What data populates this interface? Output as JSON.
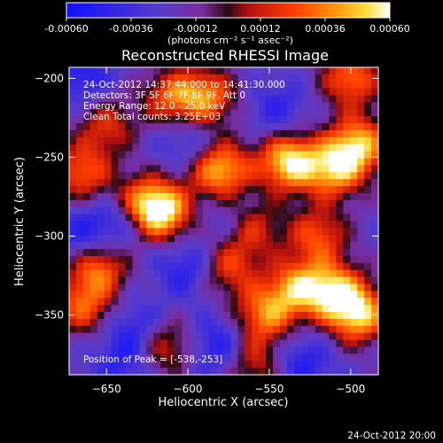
{
  "colors": {
    "background": "#000000",
    "foreground": "#ffffff",
    "colormap": [
      "#1010ff",
      "#5a3cc8",
      "#7a2a9a",
      "#2a0a12",
      "#b01010",
      "#ff3c00",
      "#ff9a10",
      "#ffe040",
      "#ffffff"
    ]
  },
  "colorbar": {
    "ticks": [
      "-0.00060",
      "-0.00036",
      "-0.00012",
      "0.00012",
      "0.00036",
      "0.00060"
    ],
    "units": "(photons cm⁻² s⁻¹ asec⁻²)"
  },
  "title": "Reconstructed RHESSI Image",
  "info": {
    "line1": "24-Oct-2012 14:37:44.000 to 14:41:30.000",
    "line2": "Detectors: 3F 5F 6F 7F 8F 9F, Att 0",
    "line3": "Energy Range: 12.0 - 25.0 keV",
    "line4": "Clean     Total counts: 3.25E+03"
  },
  "peak": "Position of Peak = [-538,-253]",
  "footer": "24-Oct-2012 20:00",
  "chart_data": {
    "type": "heatmap",
    "title": "Reconstructed RHESSI Image",
    "xlabel": "Heliocentric X (arcsec)",
    "ylabel": "Heliocentric Y (arcsec)",
    "xlim": [
      -673,
      -483
    ],
    "ylim": [
      -388,
      -193
    ],
    "xticks": [
      -650,
      -600,
      -550,
      -500
    ],
    "yticks": [
      -200,
      -250,
      -300,
      -350
    ],
    "colorbar_range": [
      -0.0006,
      0.0006
    ],
    "colorbar_ticks": [
      -0.0006,
      -0.00036,
      -0.00012,
      0.00012,
      0.00036,
      0.0006
    ],
    "peak_position": [
      -538,
      -253
    ],
    "blobs": [
      {
        "x": -538,
        "y": -253,
        "rel": 1.0
      },
      {
        "x": -580,
        "y": -258,
        "rel": 0.9
      },
      {
        "x": -615,
        "y": -285,
        "rel": 0.85
      },
      {
        "x": -628,
        "y": -280,
        "rel": 0.7
      },
      {
        "x": -495,
        "y": -242,
        "rel": 0.85
      },
      {
        "x": -510,
        "y": -258,
        "rel": 0.8
      },
      {
        "x": -495,
        "y": -350,
        "rel": 0.9
      },
      {
        "x": -510,
        "y": -335,
        "rel": 0.8
      },
      {
        "x": -533,
        "y": -333,
        "rel": 0.75
      },
      {
        "x": -553,
        "y": -350,
        "rel": 0.7
      },
      {
        "x": -500,
        "y": -200,
        "rel": 0.7
      },
      {
        "x": -588,
        "y": -212,
        "rel": 0.7
      },
      {
        "x": -610,
        "y": -212,
        "rel": 0.6
      },
      {
        "x": -665,
        "y": -260,
        "rel": 0.65
      },
      {
        "x": -655,
        "y": -320,
        "rel": 0.7
      },
      {
        "x": -665,
        "y": -345,
        "rel": 0.6
      },
      {
        "x": -615,
        "y": -370,
        "rel": 0.55
      },
      {
        "x": -650,
        "y": -230,
        "rel": 0.5
      },
      {
        "x": -575,
        "y": -320,
        "rel": 0.55
      },
      {
        "x": -560,
        "y": -295,
        "rel": 0.5
      },
      {
        "x": -520,
        "y": -300,
        "rel": 0.6
      },
      {
        "x": -560,
        "y": -380,
        "rel": 0.5
      },
      {
        "x": -600,
        "y": -320,
        "rel": -0.5
      },
      {
        "x": -640,
        "y": -290,
        "rel": -0.6
      },
      {
        "x": -665,
        "y": -300,
        "rel": -0.5
      },
      {
        "x": -545,
        "y": -220,
        "rel": -0.4
      },
      {
        "x": -600,
        "y": -240,
        "rel": -0.4
      },
      {
        "x": -630,
        "y": -360,
        "rel": -0.5
      },
      {
        "x": -580,
        "y": -370,
        "rel": -0.6
      },
      {
        "x": -530,
        "y": -380,
        "rel": -0.5
      },
      {
        "x": -665,
        "y": -200,
        "rel": -0.5
      },
      {
        "x": -640,
        "y": -380,
        "rel": -0.4
      },
      {
        "x": -575,
        "y": -290,
        "rel": -0.3
      }
    ]
  }
}
